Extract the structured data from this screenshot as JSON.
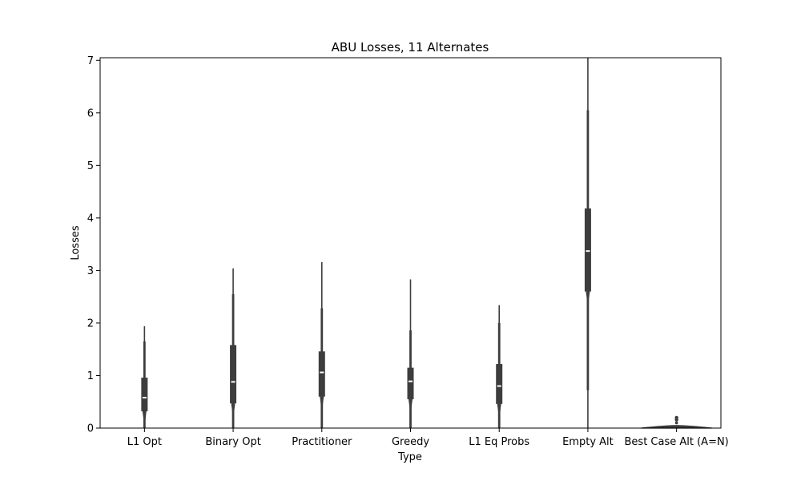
{
  "chart_data": {
    "type": "violin",
    "title": "ABU Losses, 11 Alternates",
    "xlabel": "Type",
    "ylabel": "Losses",
    "ylim": [
      0,
      7.05
    ],
    "yticks": [
      0,
      1,
      2,
      3,
      4,
      5,
      6,
      7
    ],
    "grid": false,
    "legend": "none",
    "colors": {
      "body": "#3d3d3d",
      "median": "#ffffff",
      "frame": "#000000"
    },
    "categories": [
      "L1 Opt",
      "Binary Opt",
      "Practitioner",
      "Greedy",
      "L1 Eq Probs",
      "Empty Alt",
      "Best Case Alt (A=N)"
    ],
    "series": [
      {
        "category": "L1 Opt",
        "min": 0.0,
        "whisker_low": 0.0,
        "q1": 0.32,
        "median": 0.58,
        "q3": 0.96,
        "whisker_high": 1.65,
        "max": 1.94
      },
      {
        "category": "Binary Opt",
        "min": 0.0,
        "whisker_low": 0.0,
        "q1": 0.47,
        "median": 0.88,
        "q3": 1.58,
        "whisker_high": 2.55,
        "max": 3.04
      },
      {
        "category": "Practitioner",
        "min": 0.0,
        "whisker_low": 0.0,
        "q1": 0.6,
        "median": 1.06,
        "q3": 1.46,
        "whisker_high": 2.28,
        "max": 3.16
      },
      {
        "category": "Greedy",
        "min": 0.0,
        "whisker_low": 0.0,
        "q1": 0.55,
        "median": 0.89,
        "q3": 1.15,
        "whisker_high": 1.86,
        "max": 2.83
      },
      {
        "category": "L1 Eq Probs",
        "min": 0.0,
        "whisker_low": 0.0,
        "q1": 0.46,
        "median": 0.8,
        "q3": 1.22,
        "whisker_high": 2.0,
        "max": 2.34
      },
      {
        "category": "Empty Alt",
        "min": 0.0,
        "whisker_low": 0.72,
        "q1": 2.6,
        "median": 3.37,
        "q3": 4.18,
        "whisker_high": 6.05,
        "max": 7.05
      },
      {
        "category": "Best Case Alt (A=N)",
        "min": 0.0,
        "whisker_low": 0.0,
        "q1": 0.0,
        "median": 0.01,
        "q3": 0.02,
        "whisker_high": 0.05,
        "max": 0.2
      }
    ]
  }
}
